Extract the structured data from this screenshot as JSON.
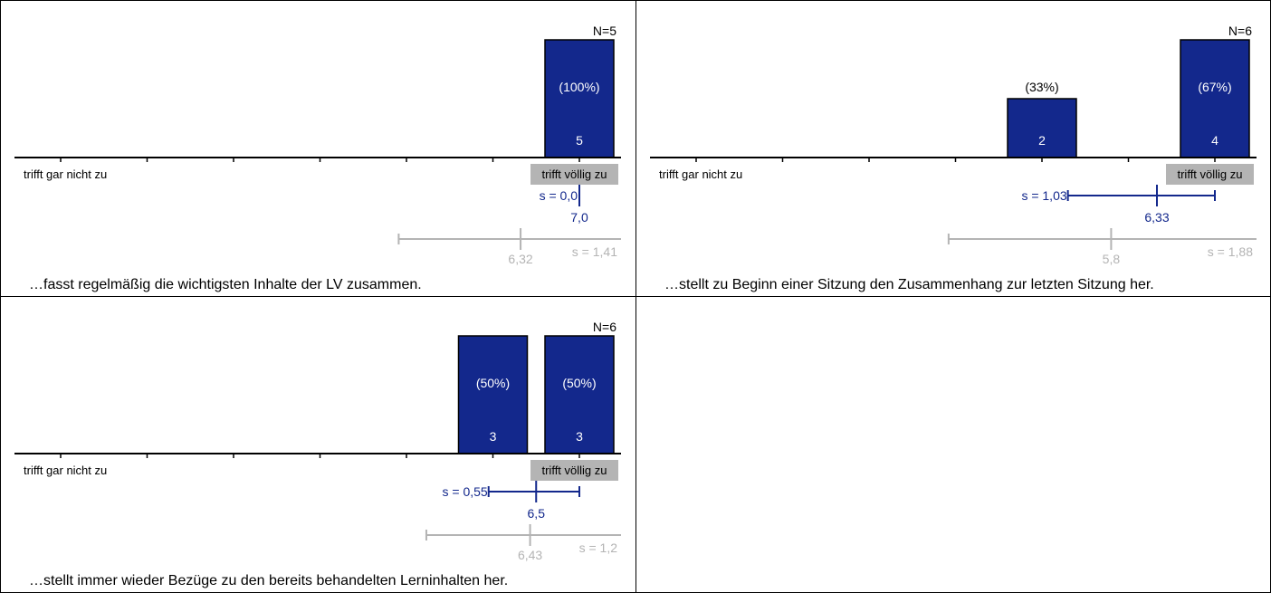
{
  "chart_data": [
    {
      "type": "bar",
      "n_label": "N=5",
      "scale_left_label": "trifft gar nicht zu",
      "scale_right_label": "trifft völlig zu",
      "x": [
        1,
        2,
        3,
        4,
        5,
        6,
        7
      ],
      "counts": [
        0,
        0,
        0,
        0,
        0,
        0,
        5
      ],
      "percent_labels": [
        "",
        "",
        "",
        "",
        "",
        "",
        "(100%)"
      ],
      "count_labels": [
        "",
        "",
        "",
        "",
        "",
        "",
        "5"
      ],
      "mean": 7.0,
      "mean_label": "7,0",
      "sd": 0.0,
      "sd_label": "s = 0,0",
      "ref_mean": 6.32,
      "ref_mean_label": "6,32",
      "ref_sd": 1.41,
      "ref_sd_label": "s = 1,41",
      "statement": "…fasst regelmäßig die wichtigsten Inhalte der LV zusammen.",
      "colors": {
        "bar": "#13288c",
        "mean": "#13288c",
        "ref": "#b4b4b4",
        "label_bg": "#b4b4b4"
      }
    },
    {
      "type": "bar",
      "n_label": "N=6",
      "scale_left_label": "trifft gar nicht zu",
      "scale_right_label": "trifft völlig zu",
      "x": [
        1,
        2,
        3,
        4,
        5,
        6,
        7
      ],
      "counts": [
        0,
        0,
        0,
        0,
        2,
        0,
        4
      ],
      "percent_labels": [
        "",
        "",
        "",
        "",
        "(33%)",
        "",
        "(67%)"
      ],
      "count_labels": [
        "",
        "",
        "",
        "",
        "2",
        "",
        "4"
      ],
      "mean": 6.33,
      "mean_label": "6,33",
      "sd": 1.03,
      "sd_label": "s = 1,03",
      "ref_mean": 5.8,
      "ref_mean_label": "5,8",
      "ref_sd": 1.88,
      "ref_sd_label": "s = 1,88",
      "statement": "…stellt zu Beginn einer Sitzung den Zusammenhang zur letzten Sitzung her.",
      "colors": {
        "bar": "#13288c",
        "mean": "#13288c",
        "ref": "#b4b4b4",
        "label_bg": "#b4b4b4"
      }
    },
    {
      "type": "bar",
      "n_label": "N=6",
      "scale_left_label": "trifft gar nicht zu",
      "scale_right_label": "trifft völlig zu",
      "x": [
        1,
        2,
        3,
        4,
        5,
        6,
        7
      ],
      "counts": [
        0,
        0,
        0,
        0,
        0,
        3,
        3
      ],
      "percent_labels": [
        "",
        "",
        "",
        "",
        "",
        "(50%)",
        "(50%)"
      ],
      "count_labels": [
        "",
        "",
        "",
        "",
        "",
        "3",
        "3"
      ],
      "mean": 6.5,
      "mean_label": "6,5",
      "sd": 0.55,
      "sd_label": "s = 0,55",
      "ref_mean": 6.43,
      "ref_mean_label": "6,43",
      "ref_sd": 1.2,
      "ref_sd_label": "s = 1,2",
      "statement": "…stellt immer wieder Bezüge zu den bereits behandelten Lerninhalten her.",
      "colors": {
        "bar": "#13288c",
        "mean": "#13288c",
        "ref": "#b4b4b4",
        "label_bg": "#b4b4b4"
      }
    }
  ]
}
